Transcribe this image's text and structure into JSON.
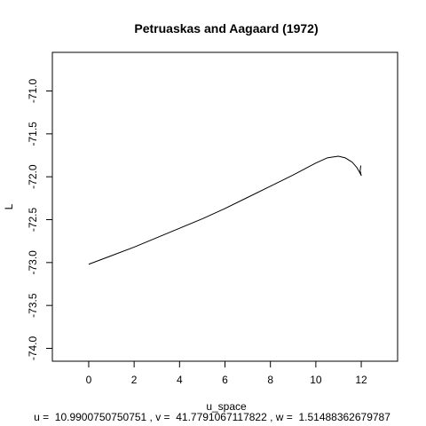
{
  "chart_data": {
    "type": "line",
    "title": "Petruaskas and Aagaard (1972)",
    "xlabel": "u_space",
    "ylabel": "L",
    "subtitle": "u =  10.9900750750751 , v =  41.7791067117822 , w =  1.51488362679787",
    "xlim": [
      -1.6,
      13.6
    ],
    "ylim": [
      -74.15,
      -70.55
    ],
    "x_ticks": [
      0,
      2,
      4,
      6,
      8,
      10,
      12
    ],
    "x_tick_labels": [
      "0",
      "2",
      "4",
      "6",
      "8",
      "10",
      "12"
    ],
    "y_ticks": [
      -74.0,
      -73.5,
      -73.0,
      -72.5,
      -72.0,
      -71.5,
      -71.0
    ],
    "y_tick_labels": [
      "-74.0",
      "-73.5",
      "-73.0",
      "-72.5",
      "-72.0",
      "-71.5",
      "-71.0"
    ],
    "grid": false,
    "series": [
      {
        "color": "#000000",
        "x": [
          0,
          1,
          2,
          3,
          4,
          5,
          6,
          7,
          8,
          9,
          10,
          10.5,
          10.99,
          11.3,
          11.6,
          11.8,
          11.95,
          12.0,
          11.95,
          11.98
        ],
        "y": [
          -73.02,
          -72.92,
          -72.82,
          -72.71,
          -72.6,
          -72.49,
          -72.37,
          -72.24,
          -72.11,
          -71.98,
          -71.84,
          -71.78,
          -71.76,
          -71.78,
          -71.83,
          -71.89,
          -71.96,
          -71.985,
          -71.93,
          -71.87
        ]
      }
    ]
  }
}
